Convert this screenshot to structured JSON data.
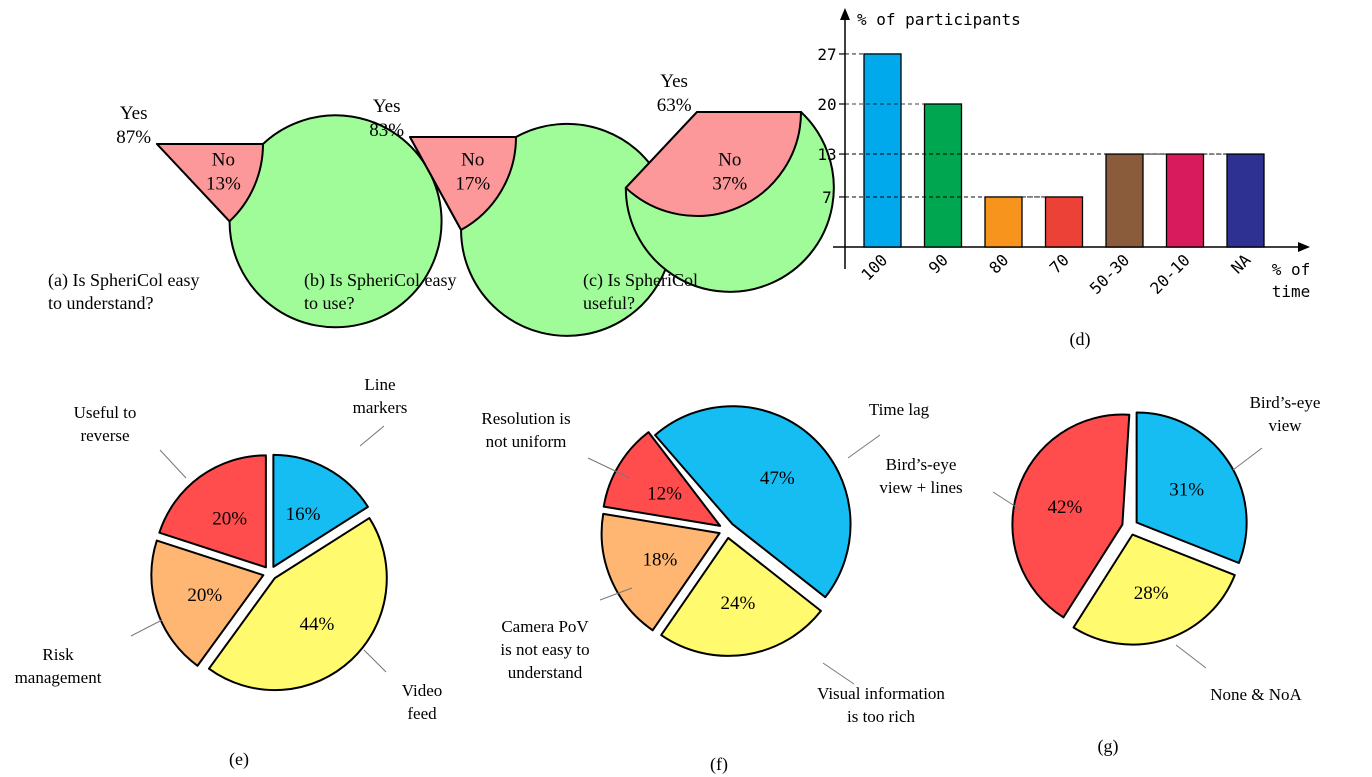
{
  "chart_data": [
    {
      "id": "a",
      "type": "pie",
      "caption": [
        "(a) Is SpheriCol easy",
        "to understand?"
      ],
      "slices": [
        {
          "label": "Yes",
          "value": 87,
          "text": "87%",
          "color": "#a0fc98"
        },
        {
          "label": "No",
          "value": 13,
          "text": "13%",
          "color": "#fc9899"
        }
      ]
    },
    {
      "id": "b",
      "type": "pie",
      "caption": [
        "(b) Is SpheriCol easy",
        "to use?"
      ],
      "slices": [
        {
          "label": "Yes",
          "value": 83,
          "text": "83%",
          "color": "#a0fc98"
        },
        {
          "label": "No",
          "value": 17,
          "text": "17%",
          "color": "#fc9899"
        }
      ]
    },
    {
      "id": "c",
      "type": "pie",
      "caption": [
        "(c) Is SpheriCol",
        "useful?"
      ],
      "slices": [
        {
          "label": "Yes",
          "value": 63,
          "text": "63%",
          "color": "#a0fc98"
        },
        {
          "label": "No",
          "value": 37,
          "text": "37%",
          "color": "#fc9899"
        }
      ]
    },
    {
      "id": "d",
      "type": "bar",
      "caption": "(d)",
      "ylabel": "% of participants",
      "xlabel": [
        "% of",
        "time"
      ],
      "yticks": [
        7,
        13,
        20,
        27
      ],
      "ylim": [
        0,
        30
      ],
      "grid": "dashed at ticks",
      "categories": [
        "100",
        "90",
        "80",
        "70",
        "50-30",
        "20-10",
        "NA"
      ],
      "values": [
        27,
        20,
        7,
        7,
        13,
        13,
        13
      ],
      "colors": [
        "#00a9ec",
        "#00a650",
        "#f7941d",
        "#ec4136",
        "#8a5c3b",
        "#d81b5d",
        "#2e3192"
      ]
    },
    {
      "id": "e",
      "type": "pie",
      "caption": "(e)",
      "slices": [
        {
          "label": [
            "Line",
            "markers"
          ],
          "value": 16,
          "text": "16%",
          "color": "#16bdf2"
        },
        {
          "label": [
            "Video",
            "feed"
          ],
          "value": 44,
          "text": "44%",
          "color": "#fffa6e"
        },
        {
          "label": [
            "Risk",
            "management"
          ],
          "value": 20,
          "text": "20%",
          "color": "#ffb673"
        },
        {
          "label": [
            "Useful to",
            "reverse"
          ],
          "value": 20,
          "text": "20%",
          "color": "#ff4d4e"
        }
      ]
    },
    {
      "id": "f",
      "type": "pie",
      "caption": "(f)",
      "slices": [
        {
          "label": [
            "Time lag"
          ],
          "value": 47,
          "text": "47%",
          "color": "#16bdf2"
        },
        {
          "label": [
            "Visual information",
            "is too rich"
          ],
          "value": 24,
          "text": "24%",
          "color": "#fffa6e"
        },
        {
          "label": [
            "Camera PoV",
            "is not easy to",
            "understand"
          ],
          "value": 18,
          "text": "18%",
          "color": "#ffb673"
        },
        {
          "label": [
            "Resolution is",
            "not uniform"
          ],
          "value": 12,
          "text": "12%",
          "color": "#ff4d4e"
        }
      ]
    },
    {
      "id": "g",
      "type": "pie",
      "caption": "(g)",
      "slices": [
        {
          "label": [
            "Bird’s-eye",
            "view"
          ],
          "value": 31,
          "text": "31%",
          "color": "#16bdf2"
        },
        {
          "label": [
            "None & NoA"
          ],
          "value": 28,
          "text": "28%",
          "color": "#fffa6e"
        },
        {
          "label": [
            "Bird’s-eye",
            "view + lines"
          ],
          "value": 42,
          "text": "42%",
          "color": "#ff4d4e"
        }
      ]
    }
  ]
}
